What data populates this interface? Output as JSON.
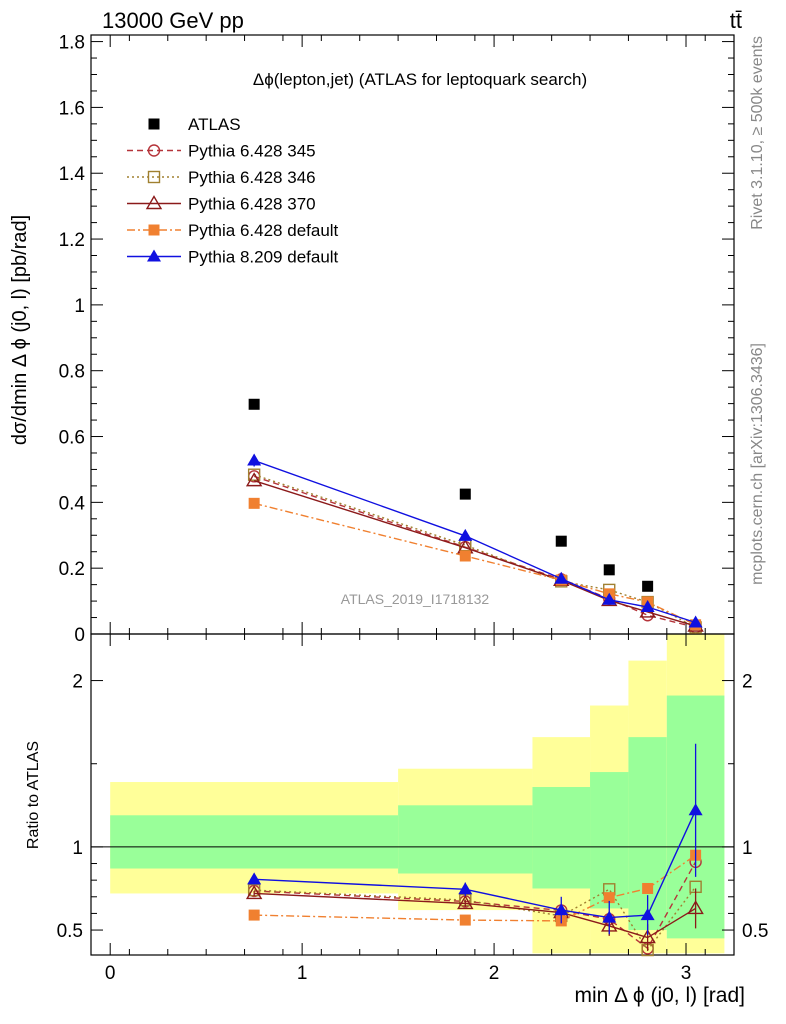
{
  "header": {
    "energy_label": "13000 GeV pp",
    "process_label": "tt̄"
  },
  "side_notes": {
    "rivet": "Rivet 3.1.10, ≥ 500k events",
    "mcplots": "mcplots.cern.ch [arXiv:1306.3436]"
  },
  "analysis_id": "ATLAS_2019_I1718132",
  "colors": {
    "data": "#000000",
    "p345": "#b5343a",
    "p346": "#a08030",
    "p370": "#8b1a1a",
    "p6def": "#f08030",
    "p8def": "#1010e0",
    "band_inner": "#99ff99",
    "band_outer": "#ffff99"
  },
  "chart_data": [
    {
      "type": "scatter",
      "title": "Δϕ(lepton,jet) (ATLAS for leptoquark search)",
      "xlabel": "min Δ ϕ (j0, l) [rad]",
      "ylabel": "dσ/dmin Δ ϕ (j0, l) [pb/rad]",
      "xlim": [
        -0.1,
        3.25
      ],
      "ylim": [
        0,
        1.82
      ],
      "yticks": [
        "0",
        "0.2",
        "0.4",
        "0.6",
        "0.8",
        "1",
        "1.2",
        "1.4",
        "1.6",
        "1.8"
      ],
      "legend_position": "top-left",
      "bin_edges": [
        0,
        1.5,
        2.2,
        2.5,
        2.7,
        2.9,
        3.2
      ],
      "x": [
        0.75,
        1.85,
        2.35,
        2.6,
        2.8,
        3.05
      ],
      "series": [
        {
          "name": "ATLAS",
          "marker": "square-filled",
          "values": [
            0.698,
            0.425,
            0.282,
            0.195,
            0.145,
            null
          ]
        },
        {
          "name": "Pythia 6.428 345",
          "marker": "circle-open",
          "line": "dashed",
          "values": [
            0.479,
            0.264,
            0.166,
            0.107,
            0.057,
            0.02
          ]
        },
        {
          "name": "Pythia 6.428 346",
          "marker": "square-open",
          "line": "dotted",
          "values": [
            0.484,
            0.27,
            0.16,
            0.134,
            0.097,
            0.02
          ]
        },
        {
          "name": "Pythia 6.428 370",
          "marker": "triangle-open",
          "line": "solid",
          "values": [
            0.466,
            0.262,
            0.163,
            0.102,
            0.067,
            0.024
          ]
        },
        {
          "name": "Pythia 6.428 default",
          "marker": "square-filled",
          "line": "dashdot",
          "values": [
            0.397,
            0.237,
            0.164,
            0.122,
            0.097,
            0.028
          ]
        },
        {
          "name": "Pythia 8.209 default",
          "marker": "triangle-filled",
          "line": "solid",
          "values": [
            0.527,
            0.298,
            0.168,
            0.104,
            0.082,
            0.035
          ],
          "errors": [
            0.018,
            0.016,
            0.014,
            0.012,
            0.01,
            0.008
          ]
        }
      ]
    },
    {
      "type": "scatter",
      "title": "",
      "xlabel": "min Δ ϕ (j0, l) [rad]",
      "ylabel": "Ratio to ATLAS",
      "xlim": [
        -0.1,
        3.25
      ],
      "ylim": [
        0.35,
        2.28
      ],
      "yticks": [
        "0.5",
        "1",
        "2"
      ],
      "xticks": [
        "0",
        "1",
        "2",
        "3"
      ],
      "x": [
        0.75,
        1.85,
        2.35,
        2.6,
        2.8,
        3.05
      ],
      "reference_line": 1,
      "bands": {
        "edges": [
          0,
          1.5,
          2.2,
          2.5,
          2.7,
          2.9,
          3.2
        ],
        "inner_low": [
          0.87,
          0.84,
          0.75,
          0.63,
          0.5,
          0.45
        ],
        "inner_high": [
          1.19,
          1.25,
          1.36,
          1.45,
          1.66,
          1.91
        ],
        "outer_low": [
          0.72,
          0.62,
          0.36,
          0.36,
          0.36,
          0.36
        ],
        "outer_high": [
          1.39,
          1.47,
          1.66,
          1.85,
          2.12,
          2.28
        ]
      },
      "series": [
        {
          "name": "Pythia 6.428 345",
          "values": [
            0.735,
            0.672,
            0.618,
            0.565,
            0.39,
            0.91
          ]
        },
        {
          "name": "Pythia 6.428 346",
          "values": [
            0.74,
            0.68,
            0.585,
            0.745,
            0.38,
            0.76
          ]
        },
        {
          "name": "Pythia 6.428 370",
          "values": [
            0.72,
            0.66,
            0.605,
            0.525,
            0.455,
            0.63
          ],
          "errors": [
            0.015,
            0.02,
            0.04,
            0.06,
            0.08,
            0.12
          ]
        },
        {
          "name": "Pythia 6.428 default",
          "values": [
            0.59,
            0.56,
            0.555,
            0.695,
            0.75,
            0.95
          ]
        },
        {
          "name": "Pythia 8.209 default",
          "values": [
            0.805,
            0.745,
            0.62,
            0.575,
            0.59,
            1.22
          ],
          "errors": [
            0.03,
            0.04,
            0.08,
            0.1,
            0.12,
            0.4
          ]
        }
      ]
    }
  ]
}
